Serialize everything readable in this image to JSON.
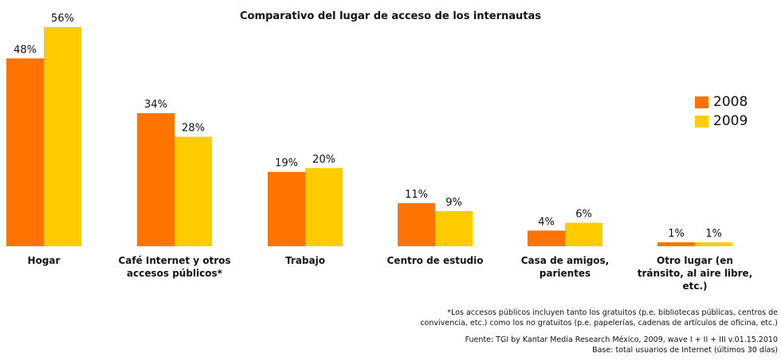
{
  "title": "Comparativo del lugar de acceso de los internautas",
  "legend": [
    {
      "label": "2008",
      "color": "#FF7300"
    },
    {
      "label": "2009",
      "color": "#FFCC00"
    }
  ],
  "footnote": {
    "line1": "*Los accesos públicos incluyen tanto los gratuitos (p.e. bibliotecas públicas, centros de",
    "line2": "convivencia, etc.) como los  no gratuitos (p.e. papelerías, cadenas de artículos de oficina, etc.)"
  },
  "source": {
    "line1": "Fuente: TGI by Kantar Media Research México, 2009, wave I + II + III v.01.15.2010",
    "line2": "Base: total usuarios de Internet (últimos 30 días)"
  },
  "chart_data": {
    "type": "bar",
    "title": "Comparativo del lugar de acceso de los internautas",
    "categories": [
      [
        "Hogar"
      ],
      [
        "Café Internet y otros",
        "accesos públicos*"
      ],
      [
        "Trabajo"
      ],
      [
        "Centro de estudio"
      ],
      [
        "Casa de amigos,",
        "parientes"
      ],
      [
        "Otro lugar (en",
        "tránsito, al aire libre,",
        "etc.)"
      ]
    ],
    "series": [
      {
        "name": "2008",
        "color": "#FF7300",
        "values": [
          48,
          34,
          19,
          11,
          4,
          1
        ],
        "labels": [
          "48%",
          "34%",
          "19%",
          "11%",
          "4%",
          "1%"
        ]
      },
      {
        "name": "2009",
        "color": "#FFCC00",
        "values": [
          56,
          28,
          20,
          9,
          6,
          1
        ],
        "labels": [
          "56%",
          "28%",
          "20%",
          "9%",
          "6%",
          "1%"
        ]
      }
    ],
    "unit": "%",
    "ylim": [
      0,
      56
    ],
    "grid": false,
    "legend_position": "right"
  }
}
